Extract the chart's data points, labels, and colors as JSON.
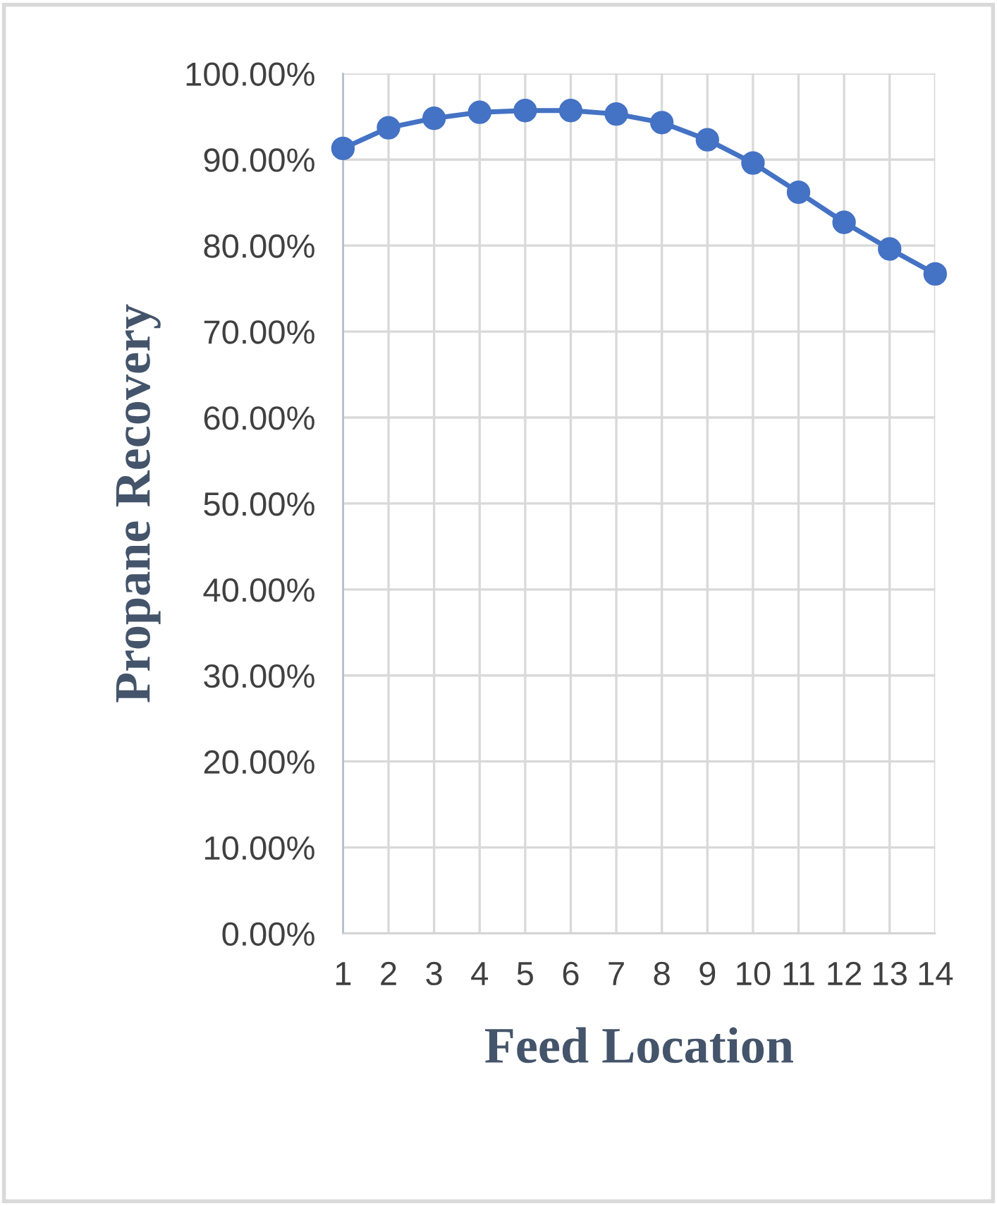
{
  "chart_data": {
    "type": "line",
    "xlabel": "Feed Location",
    "ylabel": "Propane Recovery",
    "categories": [
      "1",
      "2",
      "3",
      "4",
      "5",
      "6",
      "7",
      "8",
      "9",
      "10",
      "11",
      "12",
      "13",
      "14"
    ],
    "series": [
      {
        "color": "#4472c4",
        "values": [
          91.3,
          93.7,
          94.8,
          95.5,
          95.7,
          95.7,
          95.3,
          94.3,
          92.3,
          89.6,
          86.2,
          82.7,
          79.6,
          76.7
        ]
      }
    ],
    "ylim": [
      0,
      100
    ],
    "yticks": [
      {
        "value": 0,
        "label": "0.00%"
      },
      {
        "value": 10,
        "label": "10.00%"
      },
      {
        "value": 20,
        "label": "20.00%"
      },
      {
        "value": 30,
        "label": "30.00%"
      },
      {
        "value": 40,
        "label": "40.00%"
      },
      {
        "value": 50,
        "label": "50.00%"
      },
      {
        "value": 60,
        "label": "60.00%"
      },
      {
        "value": 70,
        "label": "70.00%"
      },
      {
        "value": 80,
        "label": "80.00%"
      },
      {
        "value": 90,
        "label": "90.00%"
      },
      {
        "value": 100,
        "label": "100.00%"
      }
    ],
    "grid": true,
    "marker": "circle",
    "line_style": "solid",
    "legend": false
  }
}
